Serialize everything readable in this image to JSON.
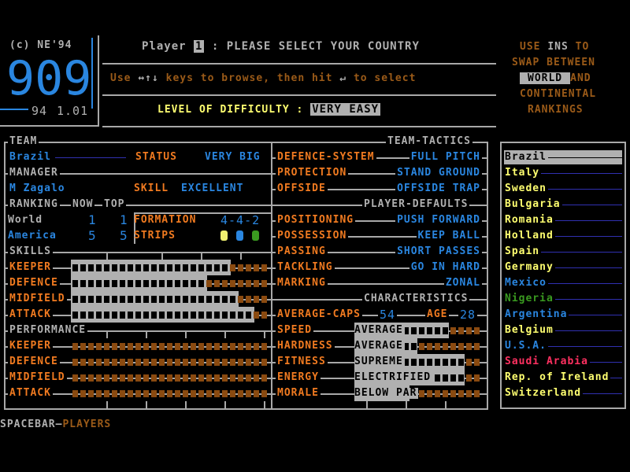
{
  "logo": {
    "copyright": "(c) NE'94",
    "logo_text": "909",
    "version_year": "94",
    "version": "1.01"
  },
  "header": {
    "player_label": "Player",
    "player_number": "1",
    "prompt": ": PLEASE SELECT YOUR COUNTRY",
    "instructions": {
      "use": "Use",
      "arrows": "↔↑↓",
      "keys_text": "keys to browse, then hit",
      "enter_icon": "↵",
      "select_text": "to select"
    },
    "difficulty_label": "LEVEL OF DIFFICULTY :",
    "difficulty_value": "VERY EASY"
  },
  "ranking_help": {
    "line1a": "USE",
    "ins": "INS",
    "line1b": "TO",
    "line2": "SWAP BETWEEN",
    "world": "WORLD",
    "and": "AND",
    "line4": "CONTINENTAL",
    "line5": "RANKINGS"
  },
  "team": {
    "header": "TEAM",
    "name": "Brazil",
    "status_label": "STATUS",
    "status_value": "VERY BIG",
    "manager_header": "MANAGER",
    "manager": "M Zagalo",
    "skill_label": "SKILL",
    "skill_value": "EXCELLENT",
    "ranking_header": "RANKING",
    "now_header": "NOW",
    "top_header": "TOP",
    "rankings": [
      {
        "label": "World",
        "now": "1",
        "top": "1"
      },
      {
        "label": "America",
        "now": "5",
        "top": "5"
      }
    ],
    "formation_label": "FORMATION",
    "formation_value": "4-4-2",
    "strips_label": "STRIPS",
    "strip_colors": [
      "#f0f070",
      "#2a86e0",
      "#3a9a20"
    ]
  },
  "skills": {
    "header": "SKILLS",
    "max_segments": 25,
    "items": [
      {
        "label": "KEEPER",
        "value": 20
      },
      {
        "label": "DEFENCE",
        "value": 17
      },
      {
        "label": "MIDFIELD",
        "value": 21
      },
      {
        "label": "ATTACK",
        "value": 23
      }
    ]
  },
  "performance": {
    "header": "PERFORMANCE",
    "max_segments": 25,
    "items": [
      {
        "label": "KEEPER",
        "value": 0
      },
      {
        "label": "DEFENCE",
        "value": 0
      },
      {
        "label": "MIDFIELD",
        "value": 0
      },
      {
        "label": "ATTACK",
        "value": 0
      }
    ]
  },
  "tactics": {
    "header": "TEAM-TACTICS",
    "items": [
      {
        "label": "DEFENCE-SYSTEM",
        "value": "FULL PITCH"
      },
      {
        "label": "PROTECTION",
        "value": "STAND GROUND"
      },
      {
        "label": "OFFSIDE",
        "value": "OFFSIDE TRAP"
      }
    ],
    "defaults_header": "PLAYER-DEFAULTS",
    "defaults": [
      {
        "label": "POSITIONING",
        "value": "PUSH FORWARD"
      },
      {
        "label": "POSSESSION",
        "value": "KEEP BALL"
      },
      {
        "label": "PASSING",
        "value": "SHORT PASSES"
      },
      {
        "label": "TACKLING",
        "value": "GO IN HARD"
      },
      {
        "label": "MARKING",
        "value": "ZONAL"
      }
    ]
  },
  "characteristics": {
    "header": "CHARACTERISTICS",
    "caps_label": "AVERAGE-CAPS",
    "caps": "54",
    "age_label": "AGE",
    "age": "28",
    "max_segments": 16,
    "items": [
      {
        "label": "SPEED",
        "rating": "AVERAGE",
        "value": 12
      },
      {
        "label": "HARDNESS",
        "rating": "AVERAGE",
        "value": 8
      },
      {
        "label": "FITNESS",
        "rating": "SUPREME",
        "value": 14
      },
      {
        "label": "ENERGY",
        "rating": "ELECTRIFIED",
        "value": 14
      },
      {
        "label": "MORALE",
        "rating": "BELOW PAR",
        "value": 7
      }
    ]
  },
  "countries": {
    "selected": 0,
    "items": [
      {
        "name": "Brazil",
        "color": "#000000"
      },
      {
        "name": "Italy",
        "color": "#ffff70"
      },
      {
        "name": "Sweden",
        "color": "#ffff70"
      },
      {
        "name": "Bulgaria",
        "color": "#ffff70"
      },
      {
        "name": "Romania",
        "color": "#ffff70"
      },
      {
        "name": "Holland",
        "color": "#ffff70"
      },
      {
        "name": "Spain",
        "color": "#ffff70"
      },
      {
        "name": "Germany",
        "color": "#ffff70"
      },
      {
        "name": "Mexico",
        "color": "#2a86e0"
      },
      {
        "name": "Nigeria",
        "color": "#3a9a20"
      },
      {
        "name": "Argentina",
        "color": "#2a86e0"
      },
      {
        "name": "Belgium",
        "color": "#ffff70"
      },
      {
        "name": "U.S.A.",
        "color": "#2a86e0"
      },
      {
        "name": "Saudi Arabia",
        "color": "#ff3060"
      },
      {
        "name": "Rep. of Ireland",
        "color": "#ffff70"
      },
      {
        "name": "Switzerland",
        "color": "#ffff70"
      }
    ]
  },
  "footer": {
    "key": "SPACEBAR",
    "action": "PLAYERS"
  },
  "colors": {
    "orange": "#f07a20",
    "blue": "#2a86e0",
    "gray": "#b0b0b0",
    "brown": "#9a5a18",
    "yellow": "#ffff70"
  }
}
